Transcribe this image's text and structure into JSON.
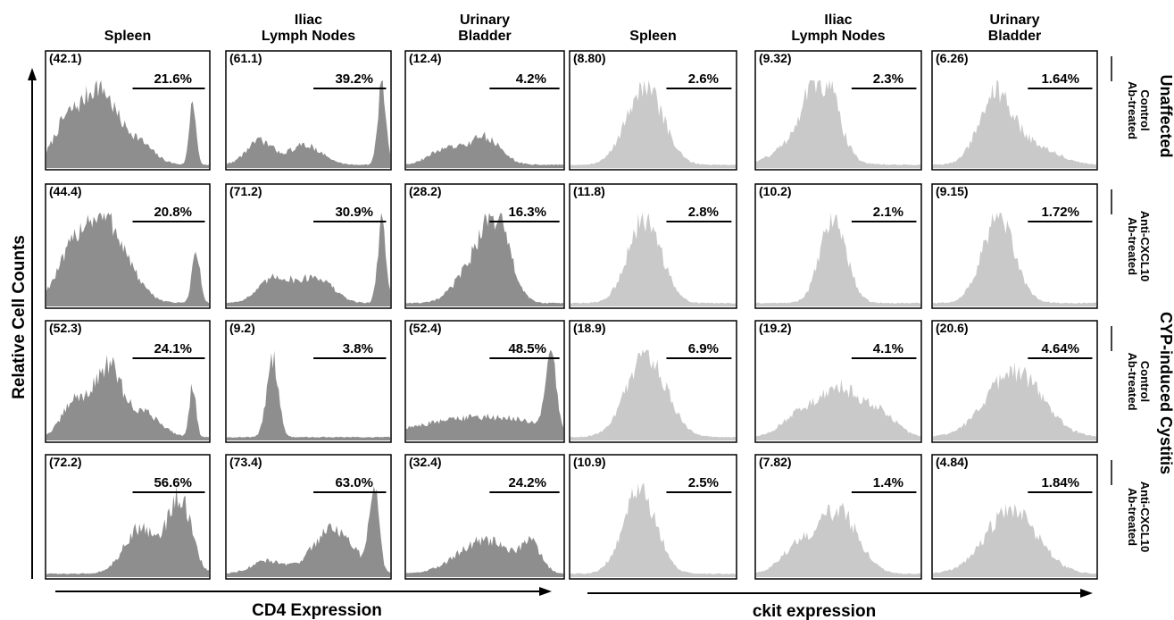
{
  "figure": {
    "y_axis_label": "Relative Cell Counts",
    "left_x_label": "CD4 Expression",
    "right_x_label": "ckit expression",
    "group_labels": [
      "Unaffected",
      "CYP-induced Cystitis"
    ],
    "columns": [
      {
        "name": "Spleen",
        "lines": [
          "Spleen"
        ]
      },
      {
        "name": "Iliac Lymph Nodes",
        "lines": [
          "Iliac",
          "Lymph Nodes"
        ]
      },
      {
        "name": "Urinary Bladder",
        "lines": [
          "Urinary",
          "Bladder"
        ]
      },
      {
        "name": "Spleen",
        "lines": [
          "Spleen"
        ]
      },
      {
        "name": "Iliac Lymph Nodes",
        "lines": [
          "Iliac",
          "Lymph Nodes"
        ]
      },
      {
        "name": "Urinary Bladder",
        "lines": [
          "Urinary",
          "Bladder"
        ]
      }
    ],
    "rows": [
      {
        "lines": [
          "Control",
          "Ab-treated"
        ]
      },
      {
        "lines": [
          "Anti-CXCL10",
          "Ab-treated"
        ]
      },
      {
        "lines": [
          "Control",
          "Ab-treated"
        ]
      },
      {
        "lines": [
          "Anti-CXCL10",
          "Ab-treated"
        ]
      }
    ],
    "colors": {
      "cd4_fill": "#8e8e8e",
      "ckit_fill": "#c9c9c9",
      "frame": "#000000"
    }
  },
  "chart_data": {
    "type": "histogram_grid",
    "marker_left": [
      "CD4",
      "CD4",
      "CD4",
      "ckit",
      "ckit",
      "ckit"
    ],
    "cells": [
      [
        {
          "count": "(42.1)",
          "pct": "21.6%",
          "shape": [
            [
              0.12,
              0.5,
              0.08
            ],
            [
              0.32,
              0.95,
              0.1
            ],
            [
              0.55,
              0.3,
              0.1
            ],
            [
              0.9,
              0.85,
              0.02
            ]
          ]
        },
        {
          "count": "(61.1)",
          "pct": "39.2%",
          "shape": [
            [
              0.2,
              0.3,
              0.08
            ],
            [
              0.48,
              0.25,
              0.1
            ],
            [
              0.95,
              1.0,
              0.025
            ]
          ]
        },
        {
          "count": "(12.4)",
          "pct": "4.2%",
          "shape": [
            [
              0.25,
              0.2,
              0.1
            ],
            [
              0.5,
              0.35,
              0.1
            ]
          ]
        },
        {
          "count": "(8.80)",
          "pct": "2.6%",
          "shape": [
            [
              0.45,
              1.0,
              0.11
            ]
          ]
        },
        {
          "count": "(9.32)",
          "pct": "2.3%",
          "shape": [
            [
              0.4,
              1.0,
              0.09
            ],
            [
              0.3,
              0.35,
              0.15
            ]
          ]
        },
        {
          "count": "(6.26)",
          "pct": "1.64%",
          "shape": [
            [
              0.38,
              0.85,
              0.1
            ],
            [
              0.6,
              0.25,
              0.15
            ]
          ]
        }
      ],
      [
        {
          "count": "(44.4)",
          "pct": "20.8%",
          "shape": [
            [
              0.35,
              1.0,
              0.14
            ],
            [
              0.15,
              0.35,
              0.1
            ],
            [
              0.92,
              0.6,
              0.025
            ]
          ]
        },
        {
          "count": "(71.2)",
          "pct": "30.9%",
          "shape": [
            [
              0.3,
              0.3,
              0.1
            ],
            [
              0.55,
              0.3,
              0.1
            ],
            [
              0.95,
              1.0,
              0.025
            ]
          ]
        },
        {
          "count": "(28.2)",
          "pct": "16.3%",
          "shape": [
            [
              0.57,
              1.0,
              0.09
            ],
            [
              0.4,
              0.35,
              0.1
            ]
          ]
        },
        {
          "count": "(11.8)",
          "pct": "2.8%",
          "shape": [
            [
              0.45,
              1.0,
              0.1
            ]
          ]
        },
        {
          "count": "(10.2)",
          "pct": "2.1%",
          "shape": [
            [
              0.47,
              1.0,
              0.08
            ]
          ]
        },
        {
          "count": "(9.15)",
          "pct": "1.72%",
          "shape": [
            [
              0.4,
              1.0,
              0.1
            ]
          ]
        }
      ],
      [
        {
          "count": "(52.3)",
          "pct": "24.1%",
          "shape": [
            [
              0.18,
              0.45,
              0.08
            ],
            [
              0.38,
              0.85,
              0.08
            ],
            [
              0.6,
              0.3,
              0.1
            ],
            [
              0.9,
              0.65,
              0.02
            ]
          ]
        },
        {
          "count": "(9.2)",
          "pct": "3.8%",
          "shape": [
            [
              0.28,
              1.0,
              0.035
            ]
          ]
        },
        {
          "count": "(52.4)",
          "pct": "48.5%",
          "shape": [
            [
              0.5,
              0.25,
              0.4
            ],
            [
              0.92,
              1.0,
              0.03
            ]
          ]
        },
        {
          "count": "(18.9)",
          "pct": "6.9%",
          "shape": [
            [
              0.46,
              1.0,
              0.12
            ]
          ]
        },
        {
          "count": "(19.2)",
          "pct": "4.1%",
          "shape": [
            [
              0.5,
              0.6,
              0.12
            ],
            [
              0.25,
              0.25,
              0.1
            ],
            [
              0.75,
              0.3,
              0.1
            ]
          ]
        },
        {
          "count": "(20.6)",
          "pct": "4.64%",
          "shape": [
            [
              0.5,
              0.8,
              0.17
            ]
          ]
        }
      ],
      [
        {
          "count": "(72.2)",
          "pct": "56.6%",
          "shape": [
            [
              0.58,
              0.55,
              0.1
            ],
            [
              0.82,
              0.9,
              0.07
            ]
          ]
        },
        {
          "count": "(73.4)",
          "pct": "63.0%",
          "shape": [
            [
              0.65,
              0.55,
              0.12
            ],
            [
              0.9,
              1.0,
              0.03
            ],
            [
              0.25,
              0.15,
              0.1
            ]
          ]
        },
        {
          "count": "(32.4)",
          "pct": "24.2%",
          "shape": [
            [
              0.5,
              0.4,
              0.17
            ],
            [
              0.8,
              0.3,
              0.06
            ]
          ]
        },
        {
          "count": "(10.9)",
          "pct": "2.5%",
          "shape": [
            [
              0.42,
              1.0,
              0.1
            ]
          ]
        },
        {
          "count": "(7.82)",
          "pct": "1.4%",
          "shape": [
            [
              0.5,
              0.75,
              0.12
            ],
            [
              0.25,
              0.3,
              0.1
            ]
          ]
        },
        {
          "count": "(4.84)",
          "pct": "1.84%",
          "shape": [
            [
              0.48,
              0.75,
              0.16
            ]
          ]
        }
      ]
    ]
  }
}
